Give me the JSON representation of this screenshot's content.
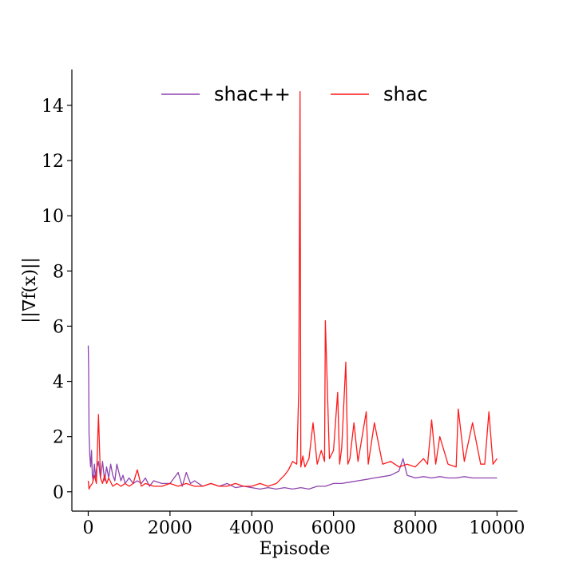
{
  "chart_data": {
    "type": "line",
    "title": "",
    "xlabel": "Episode",
    "ylabel": "||∇f(x)||",
    "xlim": [
      -400,
      10500
    ],
    "ylim": [
      -0.7,
      15.3
    ],
    "xticks": [
      0,
      2000,
      4000,
      6000,
      8000,
      10000
    ],
    "yticks": [
      0,
      2,
      4,
      6,
      8,
      10,
      12,
      14
    ],
    "grid": false,
    "legend": {
      "placement": "top-center",
      "columns": 2
    },
    "series": [
      {
        "name": "shac++",
        "color": "#8e44ad",
        "x": [
          0,
          10,
          20,
          40,
          60,
          80,
          100,
          120,
          150,
          180,
          200,
          250,
          300,
          350,
          400,
          450,
          500,
          550,
          600,
          650,
          700,
          750,
          800,
          850,
          900,
          1000,
          1100,
          1200,
          1300,
          1400,
          1500,
          1600,
          1800,
          2000,
          2200,
          2300,
          2400,
          2500,
          2600,
          2800,
          3000,
          3200,
          3400,
          3600,
          3800,
          4000,
          4200,
          4400,
          4600,
          4800,
          5000,
          5200,
          5400,
          5600,
          5800,
          6000,
          6200,
          6400,
          6600,
          6800,
          7000,
          7200,
          7400,
          7600,
          7700,
          7800,
          8000,
          8200,
          8400,
          8600,
          8800,
          9000,
          9200,
          9400,
          9600,
          9800,
          10000
        ],
        "values": [
          5.3,
          4.4,
          2.1,
          1.3,
          0.9,
          1.5,
          0.6,
          0.4,
          1.0,
          0.5,
          0.8,
          1.1,
          0.5,
          1.1,
          0.4,
          0.9,
          0.5,
          1.0,
          0.6,
          0.4,
          1.0,
          0.7,
          0.4,
          0.6,
          0.3,
          0.5,
          0.3,
          0.4,
          0.3,
          0.5,
          0.2,
          0.4,
          0.3,
          0.3,
          0.7,
          0.2,
          0.7,
          0.3,
          0.4,
          0.2,
          0.3,
          0.2,
          0.3,
          0.15,
          0.2,
          0.15,
          0.1,
          0.15,
          0.1,
          0.15,
          0.1,
          0.15,
          0.1,
          0.2,
          0.2,
          0.3,
          0.3,
          0.35,
          0.4,
          0.45,
          0.5,
          0.55,
          0.6,
          0.75,
          1.2,
          0.6,
          0.5,
          0.55,
          0.5,
          0.55,
          0.5,
          0.5,
          0.55,
          0.5,
          0.5,
          0.5,
          0.5
        ]
      },
      {
        "name": "shac",
        "color": "#ff1a1a",
        "x": [
          0,
          20,
          50,
          100,
          150,
          200,
          250,
          300,
          350,
          400,
          450,
          500,
          600,
          700,
          800,
          900,
          1000,
          1100,
          1200,
          1300,
          1400,
          1600,
          1800,
          2000,
          2200,
          2400,
          2600,
          2800,
          3000,
          3200,
          3400,
          3600,
          3800,
          4000,
          4200,
          4400,
          4600,
          4800,
          4900,
          5000,
          5100,
          5150,
          5180,
          5200,
          5250,
          5300,
          5400,
          5500,
          5600,
          5700,
          5780,
          5800,
          5900,
          6000,
          6100,
          6150,
          6200,
          6300,
          6350,
          6400,
          6500,
          6600,
          6800,
          6850,
          7000,
          7200,
          7400,
          7600,
          7800,
          8000,
          8200,
          8300,
          8400,
          8500,
          8600,
          8800,
          9000,
          9050,
          9200,
          9400,
          9600,
          9700,
          9800,
          9900,
          10000
        ],
        "values": [
          0.4,
          0.1,
          0.2,
          0.3,
          0.6,
          0.3,
          2.8,
          0.5,
          0.3,
          0.6,
          0.3,
          0.5,
          0.2,
          0.3,
          0.2,
          0.3,
          0.2,
          0.3,
          0.8,
          0.2,
          0.3,
          0.2,
          0.2,
          0.3,
          0.2,
          0.3,
          0.2,
          0.2,
          0.3,
          0.2,
          0.2,
          0.3,
          0.2,
          0.2,
          0.3,
          0.2,
          0.3,
          0.6,
          0.8,
          1.1,
          1.0,
          3.7,
          14.5,
          0.9,
          1.3,
          0.9,
          1.2,
          2.5,
          1.0,
          1.5,
          1.1,
          6.2,
          1.2,
          1.5,
          3.6,
          1.0,
          1.6,
          4.7,
          1.0,
          1.2,
          2.5,
          1.1,
          2.9,
          1.0,
          2.5,
          1.0,
          1.1,
          0.9,
          1.0,
          0.9,
          1.2,
          1.0,
          2.6,
          1.0,
          2.0,
          1.0,
          0.9,
          3.0,
          1.1,
          2.5,
          1.0,
          1.0,
          2.9,
          1.0,
          1.2
        ]
      }
    ]
  }
}
